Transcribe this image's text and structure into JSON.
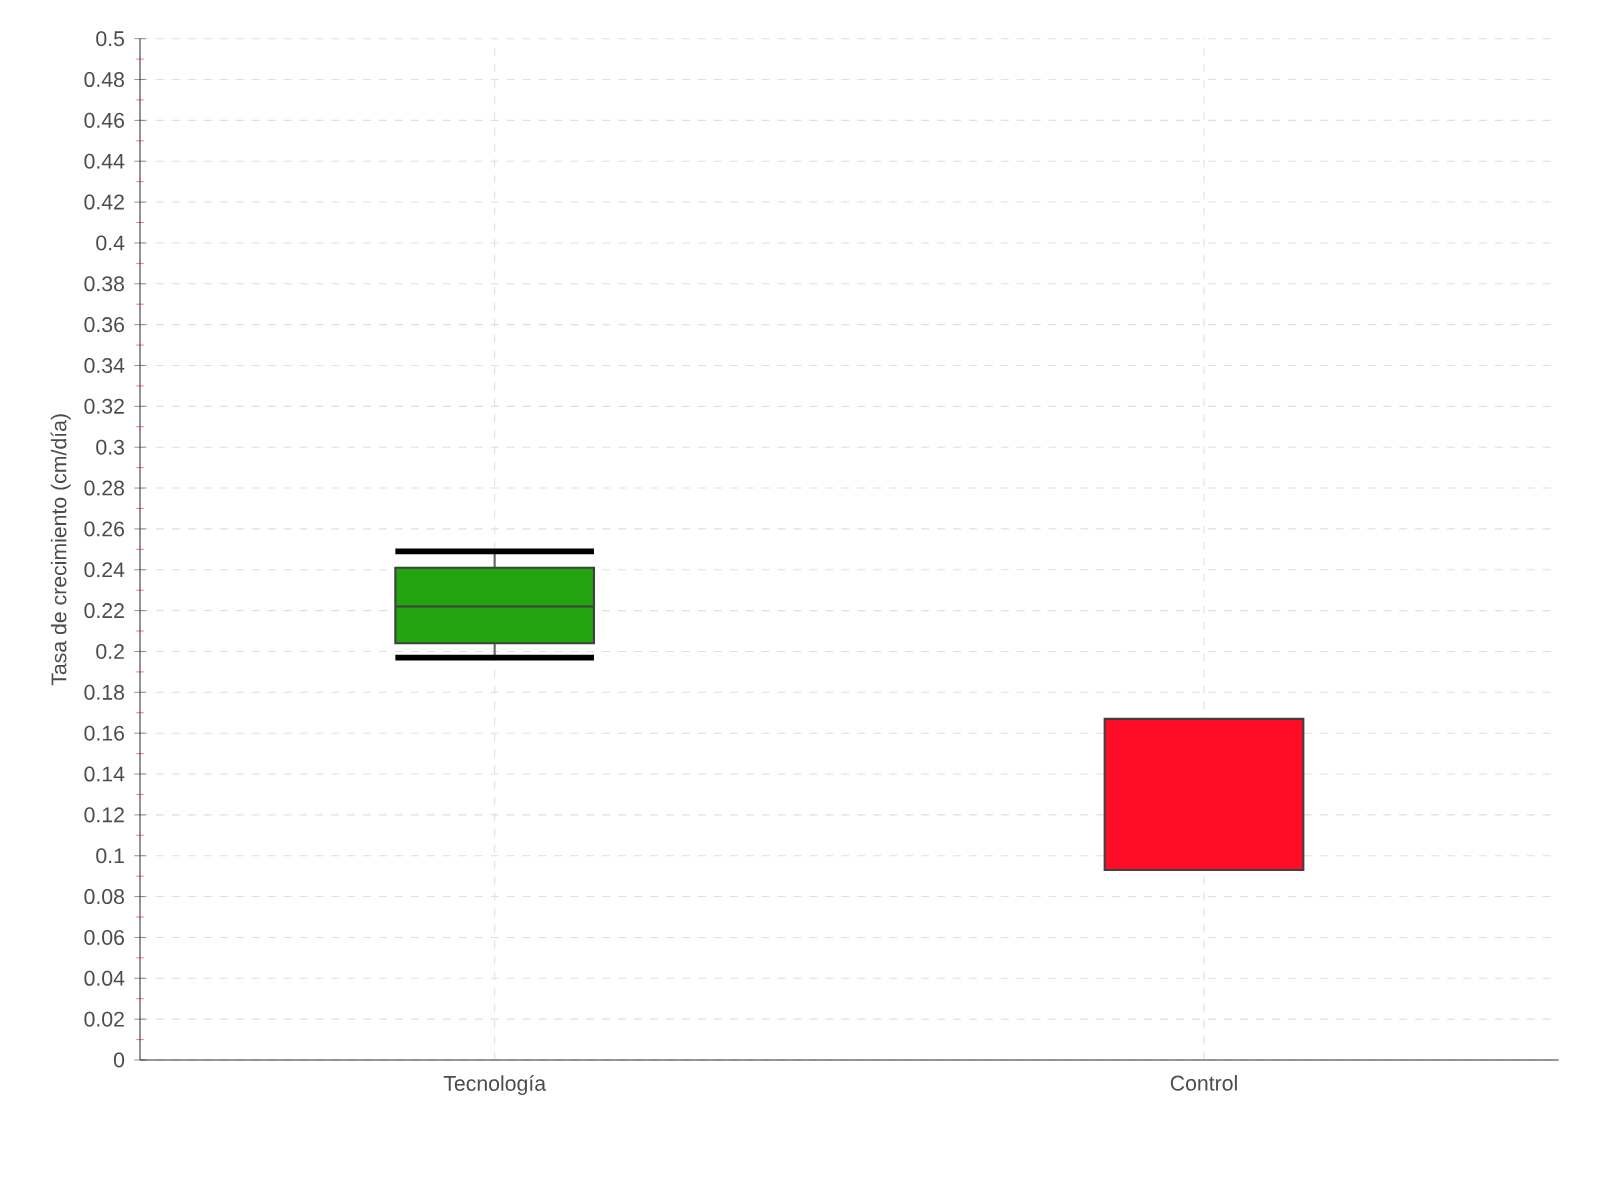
{
  "chart_data": {
    "type": "box",
    "ylabel": "Tasa de crecimiento (cm/día)",
    "categories": [
      "Tecnología",
      "Control"
    ],
    "colors": [
      "#22a30f",
      "#ff0c26"
    ],
    "boxes": [
      {
        "low": 0.197,
        "q1": 0.204,
        "median": 0.222,
        "q3": 0.241,
        "high": 0.249
      },
      {
        "low": 0.093,
        "q1": 0.093,
        "median": 0.093,
        "q3": 0.167,
        "high": 0.167
      }
    ],
    "ylim": [
      0,
      0.5
    ],
    "yticks": [
      0,
      0.02,
      0.04,
      0.06,
      0.08,
      0.1,
      0.12,
      0.14,
      0.16,
      0.18,
      0.2,
      0.22,
      0.24,
      0.26,
      0.28,
      0.3,
      0.32,
      0.34,
      0.36,
      0.38,
      0.4,
      0.42,
      0.44,
      0.46,
      0.48,
      0.5
    ],
    "grid": true
  }
}
